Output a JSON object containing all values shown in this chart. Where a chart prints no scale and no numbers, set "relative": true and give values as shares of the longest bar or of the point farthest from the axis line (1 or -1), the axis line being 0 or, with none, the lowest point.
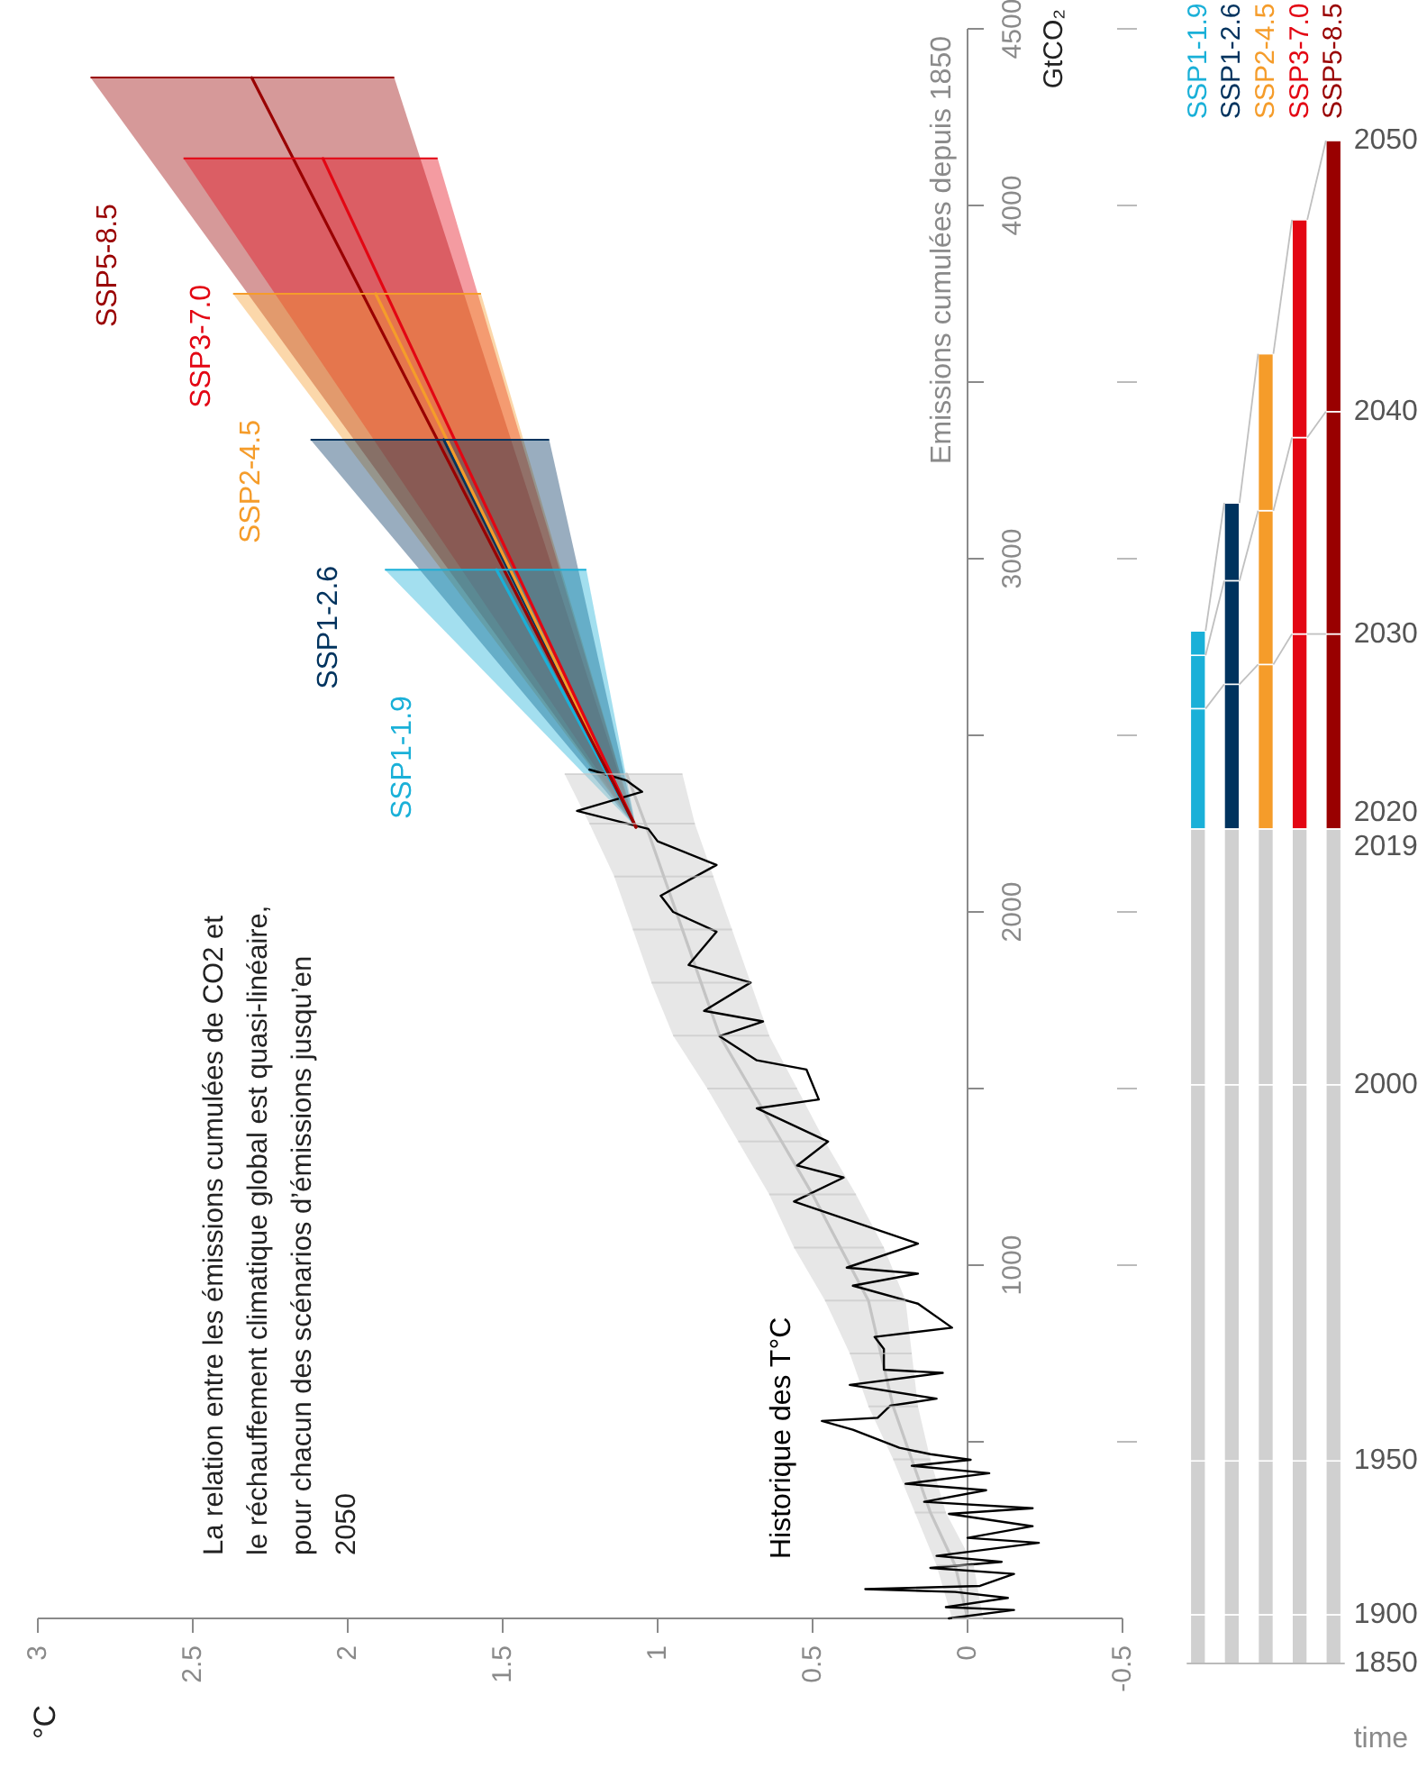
{
  "chart_data": [
    {
      "type": "line",
      "title": "La relation entre les émissions cumulées de CO2 et le réchauffement climatique global est quasi-linéaire, pour chacun des scénarios d’émissions jusqu’en 2050",
      "ylabel": "Emissions cumulées depuis 1850",
      "annotations": [
        "GtCO₂",
        "°C"
      ],
      "ylim": [
        0,
        4500
      ],
      "yticks": [
        {
          "value": 500,
          "label": null
        },
        1000,
        {
          "value": 1500,
          "label": null
        },
        2000,
        {
          "value": 2500,
          "label": null
        },
        3000,
        {
          "value": 3500,
          "label": null
        },
        4000,
        4500
      ],
      "xlim": [
        3,
        -0.5
      ],
      "xticks": [
        3,
        2.5,
        2,
        1.5,
        1,
        0.5,
        0,
        -0.5
      ],
      "series": [
        {
          "color": "#c4c4c4",
          "x": [
            0,
            0.04,
            0.12,
            0.18,
            0.24,
            0.28,
            0.32,
            0.41,
            0.5,
            0.6,
            0.7,
            0.8,
            0.86,
            0.92,
            0.98,
            1.04,
            1.1
          ],
          "values": [
            0,
            150,
            300,
            450,
            600,
            750,
            900,
            1050,
            1200,
            1350,
            1500,
            1650,
            1800,
            1950,
            2100,
            2250,
            2390
          ],
          "xerrors": [
            [
              -0.05,
              0.05
            ],
            [
              -0.02,
              0.1
            ],
            [
              0.07,
              0.17
            ],
            [
              0.12,
              0.24
            ],
            [
              0.16,
              0.32
            ],
            [
              0.18,
              0.38
            ],
            [
              0.2,
              0.46
            ],
            [
              0.27,
              0.56
            ],
            [
              0.36,
              0.64
            ],
            [
              0.46,
              0.74
            ],
            [
              0.55,
              0.84
            ],
            [
              0.64,
              0.95
            ],
            [
              0.7,
              1.02
            ],
            [
              0.76,
              1.08
            ],
            [
              0.82,
              1.14
            ],
            [
              0.88,
              1.22
            ],
            [
              0.92,
              1.3
            ]
          ]
        },
        {
          "name": "Historique des T°C",
          "color": "#000000",
          "x": [
            0.06,
            -0.15,
            0.07,
            -0.13,
            0.04,
            0.33,
            -0.04,
            -0.15,
            0.12,
            -0.11,
            0.1,
            -0.23,
            0,
            -0.21,
            0.06,
            -0.21,
            0.14,
            -0.06,
            0.2,
            -0.07,
            0.18,
            -0.01,
            0.12,
            0.22,
            0.37,
            0.47,
            0.29,
            0.25,
            0.1,
            0.38,
            0.08,
            0.27,
            0.27,
            0.3,
            0.05,
            0.16,
            0.37,
            0.16,
            0.39,
            0.16,
            0.56,
            0.4,
            0.55,
            0.45,
            0.68,
            0.48,
            0.52,
            0.68,
            0.8,
            0.66,
            0.85,
            0.7,
            0.9,
            0.81,
            0.95,
            0.99,
            0.81,
            1,
            1.03,
            1.26,
            1.05,
            1.1,
            1.22
          ],
          "values": [
            0,
            24,
            32,
            58,
            75,
            83,
            92,
            126,
            143,
            160,
            177,
            214,
            228,
            261,
            296,
            312,
            330,
            363,
            381,
            411,
            432,
            449,
            465,
            483,
            534,
            559,
            568,
            602,
            622,
            661,
            695,
            704,
            763,
            797,
            823,
            891,
            942,
            976,
            993,
            1061,
            1180,
            1248,
            1282,
            1350,
            1444,
            1469,
            1554,
            1580,
            1648,
            1690,
            1720,
            1800,
            1850,
            1944,
            2000,
            2046,
            2133,
            2200,
            2235,
            2286,
            2340,
            2372,
            2403
          ]
        },
        {
          "name": "SSP1-1.9",
          "color": "#1ab0d8",
          "x": [
            1.07,
            1.52
          ],
          "values": [
            2240,
            2969
          ],
          "xerrors": [
            null,
            [
              1.23,
              1.88
            ]
          ]
        },
        {
          "name": "SSP1-2.6",
          "color": "#00335e",
          "x": [
            1.07,
            1.69
          ],
          "values": [
            2240,
            3337
          ],
          "xerrors": [
            null,
            [
              1.35,
              2.12
            ]
          ]
        },
        {
          "name": "SSP2-4.5",
          "color": "#f59c2a",
          "x": [
            1.07,
            1.91
          ],
          "values": [
            2240,
            3750
          ],
          "xerrors": [
            null,
            [
              1.57,
              2.37
            ]
          ]
        },
        {
          "name": "SSP3-7.0",
          "color": "#e30613",
          "x": [
            1.07,
            2.08
          ],
          "values": [
            2240,
            4133
          ],
          "xerrors": [
            null,
            [
              1.71,
              2.53
            ]
          ]
        },
        {
          "name": "SSP5-8.5",
          "color": "#990000",
          "x": [
            1.07,
            2.31
          ],
          "values": [
            2240,
            4362
          ],
          "xerrors": [
            null,
            [
              1.85,
              2.83
            ]
          ]
        }
      ]
    },
    {
      "type": "bar",
      "stacked": true,
      "relative": true,
      "xlabel": "time",
      "categories": [
        "SSP1-1.9",
        "SSP1-2.6",
        "SSP2-4.5",
        "SSP3-7.0",
        "SSP5-8.5"
      ],
      "series": [
        {
          "color": "#d0d0d0",
          "values": [
            0.032,
            0.032,
            0.032,
            0.032,
            0.032
          ]
        },
        {
          "color": "#d0d0d0",
          "values": [
            0.101,
            0.101,
            0.101,
            0.101,
            0.101
          ]
        },
        {
          "color": "#d0d0d0",
          "values": [
            0.247,
            0.247,
            0.247,
            0.247,
            0.247
          ]
        },
        {
          "color": "#d0d0d0",
          "values": [
            0.168,
            0.168,
            0.168,
            0.168,
            0.168
          ]
        },
        {
          "colors": [
            "#1ab0d8",
            "#00335e",
            "#f59c2a",
            "#e30613",
            "#990000"
          ],
          "values": [
            0.079,
            0.095,
            0.108,
            0.128,
            0.128
          ]
        },
        {
          "colors": [
            "#1ab0d8",
            "#00335e",
            "#f59c2a",
            "#e30613",
            "#990000"
          ],
          "values": [
            0.035,
            0.068,
            0.101,
            0.129,
            0.146
          ]
        },
        {
          "colors": [
            "#1ab0d8",
            "#00335e",
            "#f59c2a",
            "#e30613",
            "#990000"
          ],
          "values": [
            0.016,
            0.051,
            0.103,
            0.143,
            0.178
          ]
        }
      ],
      "annotations": [
        {
          "text": "1850",
          "x": "SSP5-8.5",
          "y": 0
        },
        {
          "text": "1900",
          "x": "SSP5-8.5",
          "y": 0.032
        },
        {
          "text": "1950",
          "x": "SSP5-8.5",
          "y": 0.133
        },
        {
          "text": "2000",
          "x": "SSP5-8.5",
          "y": 0.38
        },
        {
          "text": "2019",
          "x": "SSP5-8.5",
          "y": 0.548
        },
        {
          "text": "2020",
          "x": "SSP5-8.5",
          "y": 0.548
        },
        {
          "text": "2030",
          "x": "SSP5-8.5",
          "y": 0.676
        },
        {
          "text": "2040",
          "x": "SSP5-8.5",
          "y": 0.822
        },
        {
          "text": "2050",
          "x": "SSP5-8.5",
          "y": 1
        }
      ]
    }
  ]
}
